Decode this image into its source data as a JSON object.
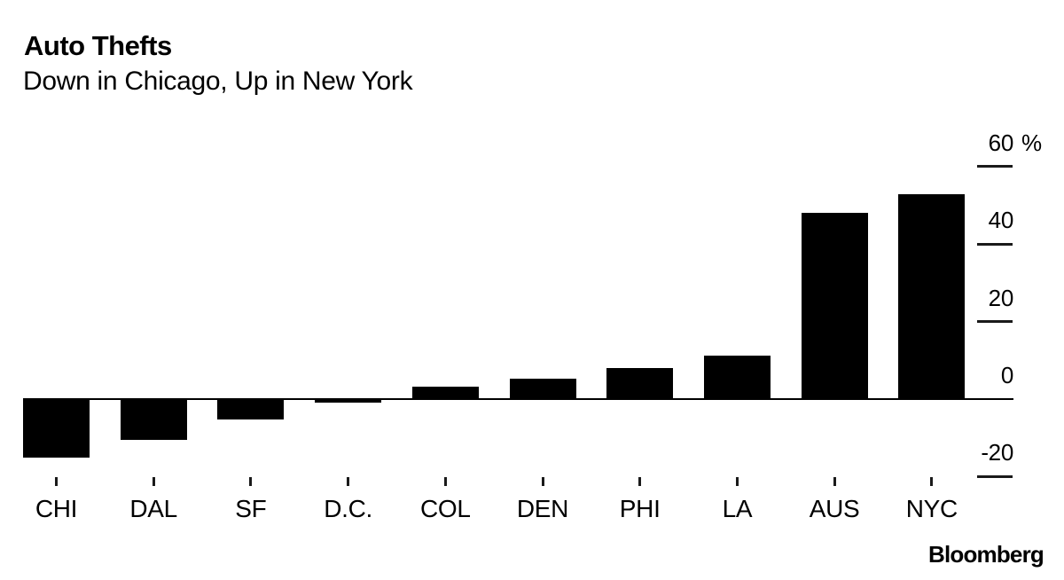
{
  "header": {
    "title": "Auto Thefts",
    "subtitle": "Down in Chicago, Up in New York"
  },
  "footer": {
    "logo_text": "Bloomberg"
  },
  "chart_data": {
    "type": "bar",
    "title": "Auto Thefts",
    "subtitle": "Down in Chicago, Up in New York",
    "categories": [
      "CHI",
      "DAL",
      "SF",
      "D.C.",
      "COL",
      "DEN",
      "PHI",
      "LA",
      "AUS",
      "NYC"
    ],
    "values": [
      -15,
      -10.5,
      -5.3,
      -1,
      3.2,
      5.3,
      8,
      11.2,
      48,
      53
    ],
    "xlabel": "",
    "ylabel": "",
    "y_axis": {
      "tick_values": [
        60,
        40,
        20,
        0,
        -20
      ],
      "tick_labels": [
        "60",
        "40",
        "20",
        "0",
        "-20"
      ],
      "unit_suffix": "%",
      "side": "right"
    },
    "ylim": [
      -25,
      62
    ],
    "grid": false,
    "legend": "none",
    "bar_color": "#000000",
    "background_color": "#ffffff",
    "source_label": "Bloomberg"
  }
}
